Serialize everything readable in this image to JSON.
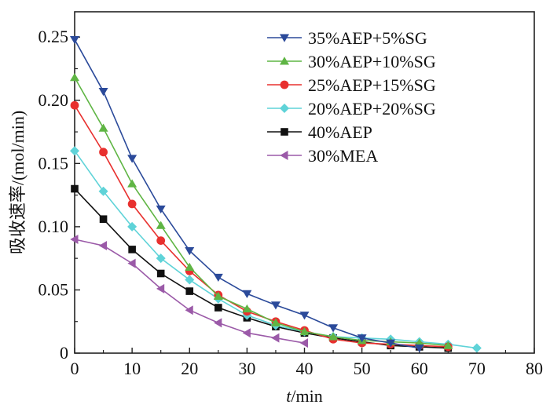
{
  "chart_data": {
    "type": "line",
    "xlabel_italic": "t",
    "xlabel_unit": "/min",
    "ylabel": "吸收速率/(mol/min)",
    "xlim": [
      0,
      80
    ],
    "ylim": [
      0,
      0.27
    ],
    "xticks": [
      0,
      10,
      20,
      30,
      40,
      50,
      60,
      70,
      80
    ],
    "yticks": [
      0,
      0.05,
      0.1,
      0.15,
      0.2,
      0.25
    ],
    "ytick_labels": [
      "0",
      "0.05",
      "0.10",
      "0.15",
      "0.20",
      "0.25"
    ],
    "legend_position": "top-right",
    "grid": false,
    "series": [
      {
        "name": "35%AEP+5%SG",
        "color": "#2b4a9a",
        "marker": "triangle-down",
        "x": [
          0,
          5,
          10,
          15,
          20,
          25,
          30,
          35,
          40,
          45,
          50,
          55,
          60
        ],
        "y": [
          0.248,
          0.207,
          0.154,
          0.114,
          0.081,
          0.06,
          0.047,
          0.038,
          0.03,
          0.02,
          0.012,
          0.008,
          0.004
        ]
      },
      {
        "name": "30%AEP+10%SG",
        "color": "#5fb544",
        "marker": "triangle-up",
        "x": [
          0,
          5,
          10,
          15,
          20,
          25,
          30,
          35,
          40,
          45,
          50,
          55,
          60,
          65
        ],
        "y": [
          0.218,
          0.178,
          0.134,
          0.101,
          0.068,
          0.045,
          0.035,
          0.024,
          0.017,
          0.013,
          0.01,
          0.009,
          0.008,
          0.006
        ]
      },
      {
        "name": "25%AEP+15%SG",
        "color": "#e8302e",
        "marker": "circle",
        "x": [
          0,
          5,
          10,
          15,
          20,
          25,
          30,
          35,
          40,
          45,
          50,
          55,
          60,
          65
        ],
        "y": [
          0.196,
          0.159,
          0.118,
          0.089,
          0.065,
          0.046,
          0.033,
          0.025,
          0.018,
          0.011,
          0.008,
          0.007,
          0.006,
          0.005
        ]
      },
      {
        "name": "20%AEP+20%SG",
        "color": "#5fd3d8",
        "marker": "diamond",
        "x": [
          0,
          5,
          10,
          15,
          20,
          25,
          30,
          35,
          40,
          45,
          50,
          55,
          60,
          65,
          70
        ],
        "y": [
          0.16,
          0.128,
          0.1,
          0.075,
          0.058,
          0.043,
          0.03,
          0.022,
          0.017,
          0.013,
          0.012,
          0.011,
          0.009,
          0.007,
          0.004
        ]
      },
      {
        "name": "40%AEP",
        "color": "#111111",
        "marker": "square",
        "x": [
          0,
          5,
          10,
          15,
          20,
          25,
          30,
          35,
          40,
          45,
          50,
          55,
          60,
          65
        ],
        "y": [
          0.13,
          0.106,
          0.082,
          0.063,
          0.049,
          0.036,
          0.028,
          0.021,
          0.016,
          0.012,
          0.009,
          0.006,
          0.005,
          0.004
        ]
      },
      {
        "name": "30%MEA",
        "color": "#9b5aa8",
        "marker": "triangle-left",
        "x": [
          0,
          5,
          10,
          15,
          20,
          25,
          30,
          35,
          40
        ],
        "y": [
          0.09,
          0.085,
          0.071,
          0.051,
          0.034,
          0.024,
          0.016,
          0.012,
          0.008
        ]
      }
    ]
  }
}
